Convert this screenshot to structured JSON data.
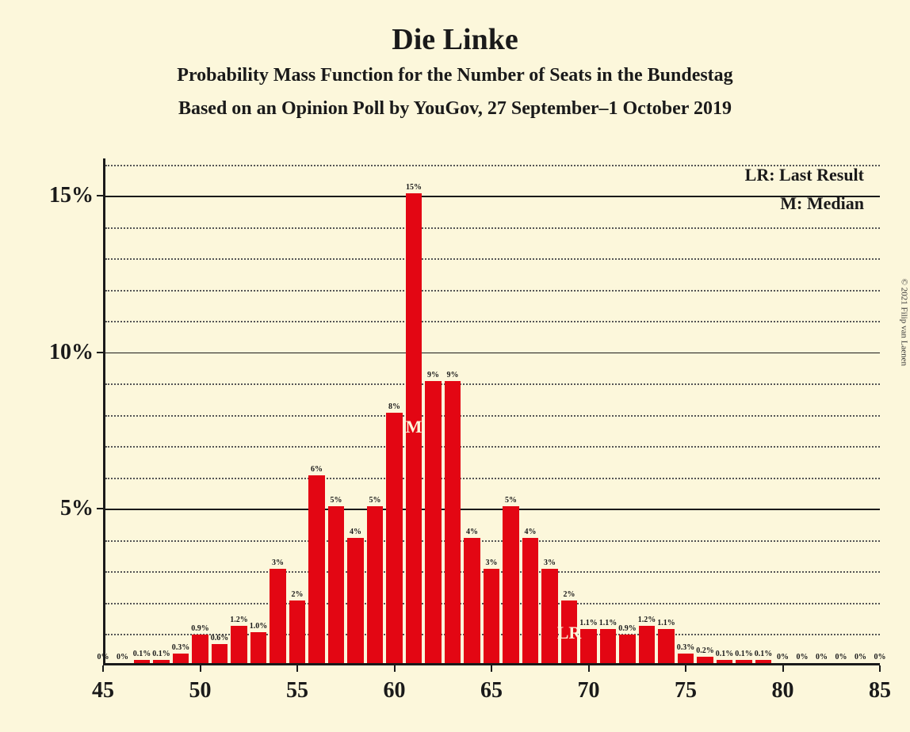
{
  "title": "Die Linke",
  "subtitle1": "Probability Mass Function for the Number of Seats in the Bundestag",
  "subtitle2": "Based on an Opinion Poll by YouGov, 27 September–1 October 2019",
  "copyright": "© 2021 Filip van Laenen",
  "legend": {
    "lr": "LR: Last Result",
    "m": "M: Median"
  },
  "markers": {
    "median": {
      "label": "M",
      "x": 61
    },
    "last_result": {
      "label": "LR",
      "x": 69
    }
  },
  "chart": {
    "type": "bar",
    "bar_color": "#e30613",
    "background_color": "#fcf7db",
    "grid_color_solid": "#1a1a1a",
    "grid_color_dotted": "#555555",
    "xlim": [
      45,
      85
    ],
    "ylim": [
      0,
      16.2
    ],
    "xticks": [
      45,
      50,
      55,
      60,
      65,
      70,
      75,
      80,
      85
    ],
    "yticks_major": [
      5,
      10,
      15
    ],
    "ytick_labels": [
      "5%",
      "10%",
      "15%"
    ],
    "ytick_minor_step": 1,
    "bar_width_ratio": 0.82,
    "title_fontsize": 38,
    "subtitle_fontsize": 24,
    "axis_label_fontsize": 28,
    "bar_label_fontsize": 10,
    "bars": [
      {
        "x": 45,
        "v": 0,
        "lbl": "0%"
      },
      {
        "x": 46,
        "v": 0,
        "lbl": "0%"
      },
      {
        "x": 47,
        "v": 0.1,
        "lbl": "0.1%"
      },
      {
        "x": 48,
        "v": 0.1,
        "lbl": "0.1%"
      },
      {
        "x": 49,
        "v": 0.3,
        "lbl": "0.3%"
      },
      {
        "x": 50,
        "v": 0.9,
        "lbl": "0.9%"
      },
      {
        "x": 51,
        "v": 0.6,
        "lbl": "0.6%"
      },
      {
        "x": 52,
        "v": 1.2,
        "lbl": "1.2%"
      },
      {
        "x": 53,
        "v": 1.0,
        "lbl": "1.0%"
      },
      {
        "x": 54,
        "v": 3,
        "lbl": "3%"
      },
      {
        "x": 55,
        "v": 2,
        "lbl": "2%"
      },
      {
        "x": 56,
        "v": 6,
        "lbl": "6%"
      },
      {
        "x": 57,
        "v": 5,
        "lbl": "5%"
      },
      {
        "x": 58,
        "v": 4,
        "lbl": "4%"
      },
      {
        "x": 59,
        "v": 5,
        "lbl": "5%"
      },
      {
        "x": 60,
        "v": 8,
        "lbl": "8%"
      },
      {
        "x": 61,
        "v": 15,
        "lbl": "15%"
      },
      {
        "x": 62,
        "v": 9,
        "lbl": "9%"
      },
      {
        "x": 63,
        "v": 9,
        "lbl": "9%"
      },
      {
        "x": 64,
        "v": 4,
        "lbl": "4%"
      },
      {
        "x": 65,
        "v": 3,
        "lbl": "3%"
      },
      {
        "x": 66,
        "v": 5,
        "lbl": "5%"
      },
      {
        "x": 67,
        "v": 4,
        "lbl": "4%"
      },
      {
        "x": 68,
        "v": 3,
        "lbl": "3%"
      },
      {
        "x": 69,
        "v": 2,
        "lbl": "2%"
      },
      {
        "x": 70,
        "v": 1.1,
        "lbl": "1.1%"
      },
      {
        "x": 71,
        "v": 1.1,
        "lbl": "1.1%"
      },
      {
        "x": 72,
        "v": 0.9,
        "lbl": "0.9%"
      },
      {
        "x": 73,
        "v": 1.2,
        "lbl": "1.2%"
      },
      {
        "x": 74,
        "v": 1.1,
        "lbl": "1.1%"
      },
      {
        "x": 75,
        "v": 0.3,
        "lbl": "0.3%"
      },
      {
        "x": 76,
        "v": 0.2,
        "lbl": "0.2%"
      },
      {
        "x": 77,
        "v": 0.1,
        "lbl": "0.1%"
      },
      {
        "x": 78,
        "v": 0.1,
        "lbl": "0.1%"
      },
      {
        "x": 79,
        "v": 0.1,
        "lbl": "0.1%"
      },
      {
        "x": 80,
        "v": 0,
        "lbl": "0%"
      },
      {
        "x": 81,
        "v": 0,
        "lbl": "0%"
      },
      {
        "x": 82,
        "v": 0,
        "lbl": "0%"
      },
      {
        "x": 83,
        "v": 0,
        "lbl": "0%"
      },
      {
        "x": 84,
        "v": 0,
        "lbl": "0%"
      },
      {
        "x": 85,
        "v": 0,
        "lbl": "0%"
      }
    ]
  }
}
